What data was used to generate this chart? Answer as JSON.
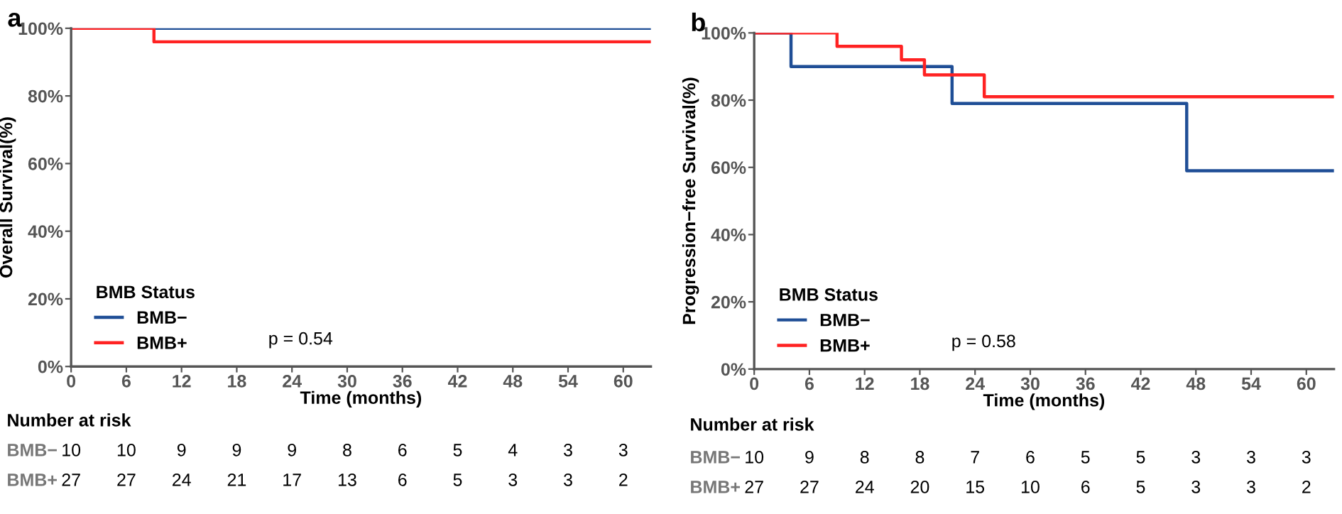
{
  "chart_data": [
    {
      "type": "step",
      "title": "a",
      "xlabel": "Time (months)",
      "ylabel": "Overall Survival(%)",
      "legend_title": "BMB Status",
      "legend": "bottom left",
      "grid": false,
      "xlim": [
        0,
        63
      ],
      "xticks": [
        0,
        6,
        12,
        18,
        24,
        30,
        36,
        42,
        48,
        54,
        60
      ],
      "ylim": [
        0,
        100
      ],
      "yticks": [
        {
          "value": 0,
          "label": "0%"
        },
        {
          "value": 20,
          "label": "20%"
        },
        {
          "value": 40,
          "label": "40%"
        },
        {
          "value": 60,
          "label": "60%"
        },
        {
          "value": 80,
          "label": "80%"
        },
        {
          "value": 100,
          "label": "100%"
        }
      ],
      "series": [
        {
          "name": "BMB−",
          "color": "#1f4e96",
          "x": [
            0,
            63
          ],
          "values": [
            100,
            100
          ]
        },
        {
          "name": "BMB+",
          "color": "#ff2222",
          "x": [
            0,
            9,
            63
          ],
          "values": [
            100,
            96,
            96
          ]
        }
      ],
      "annotations": [
        "p = 0.54",
        "Number at risk",
        "BMB−",
        "BMB+",
        "10",
        "10",
        "9",
        "9",
        "9",
        "8",
        "6",
        "5",
        "4",
        "3",
        "3",
        "27",
        "27",
        "24",
        "21",
        "17",
        "13",
        "6",
        "5",
        "3",
        "3",
        "2"
      ]
    },
    {
      "type": "step",
      "title": "b",
      "xlabel": "Time (months)",
      "ylabel": "Progression−free Survival(%)",
      "legend_title": "BMB Status",
      "legend": "bottom left",
      "grid": false,
      "xlim": [
        0,
        63
      ],
      "xticks": [
        0,
        6,
        12,
        18,
        24,
        30,
        36,
        42,
        48,
        54,
        60
      ],
      "ylim": [
        0,
        100
      ],
      "yticks": [
        {
          "value": 0,
          "label": "0%"
        },
        {
          "value": 20,
          "label": "20%"
        },
        {
          "value": 40,
          "label": "40%"
        },
        {
          "value": 60,
          "label": "60%"
        },
        {
          "value": 80,
          "label": "80%"
        },
        {
          "value": 100,
          "label": "100%"
        }
      ],
      "series": [
        {
          "name": "BMB−",
          "color": "#1f4e96",
          "x": [
            0,
            4,
            21.5,
            47,
            63
          ],
          "values": [
            100,
            90,
            79,
            59,
            59
          ]
        },
        {
          "name": "BMB+",
          "color": "#ff2222",
          "x": [
            0,
            9,
            16,
            18.5,
            25,
            63
          ],
          "values": [
            100,
            96,
            92,
            87.5,
            81,
            81
          ]
        }
      ],
      "annotations": [
        "p = 0.58",
        "Number at risk",
        "BMB−",
        "BMB+",
        "10",
        "9",
        "8",
        "8",
        "7",
        "6",
        "5",
        "5",
        "3",
        "3",
        "3",
        "27",
        "27",
        "24",
        "20",
        "15",
        "10",
        "6",
        "5",
        "3",
        "3",
        "2"
      ]
    }
  ]
}
